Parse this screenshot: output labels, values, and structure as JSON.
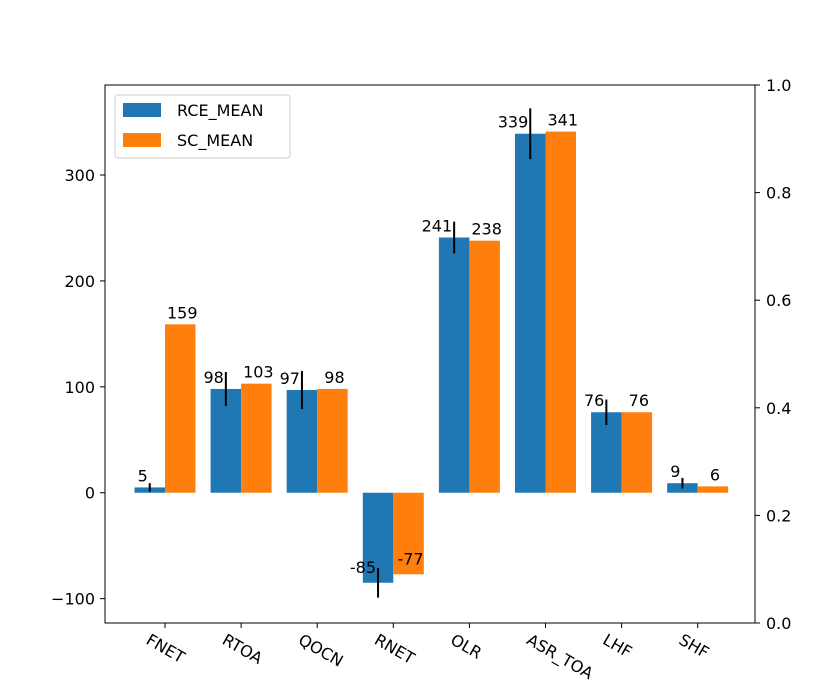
{
  "chart_data": {
    "type": "bar",
    "categories": [
      "FNET",
      "RTOA",
      "QOCN",
      "RNET",
      "OLR",
      "ASR_TOA",
      "LHF",
      "SHF"
    ],
    "series": [
      {
        "name": "RCE_MEAN",
        "color": "#1f77b4",
        "values": [
          5,
          98,
          97,
          -85,
          241,
          339,
          76,
          9
        ],
        "labels": [
          "5",
          "98",
          "97",
          "-85",
          "241",
          "339",
          "76",
          "9"
        ],
        "error": [
          4,
          16,
          18,
          14,
          15,
          24,
          12,
          5
        ]
      },
      {
        "name": "SC_MEAN",
        "color": "#ff7f0e",
        "values": [
          159,
          103,
          98,
          -77,
          238,
          341,
          76,
          6
        ],
        "labels": [
          "159",
          "103",
          "98",
          "-77",
          "238",
          "341",
          "76",
          "6"
        ]
      }
    ],
    "ylim": [
      -123,
      385
    ],
    "yticks": [
      -100,
      0,
      100,
      200,
      300
    ],
    "yticklabels": [
      "−100",
      "0",
      "100",
      "200",
      "300"
    ],
    "y2lim": [
      0.0,
      1.0
    ],
    "y2ticks": [
      0.0,
      0.2,
      0.4,
      0.6,
      0.8,
      1.0
    ],
    "y2ticklabels": [
      "0.0",
      "0.2",
      "0.4",
      "0.6",
      "0.8",
      "1.0"
    ],
    "xticklabel_rotation": -30,
    "legend_position": "upper-left",
    "grid": false,
    "xlabel": "",
    "ylabel": "",
    "title": ""
  }
}
